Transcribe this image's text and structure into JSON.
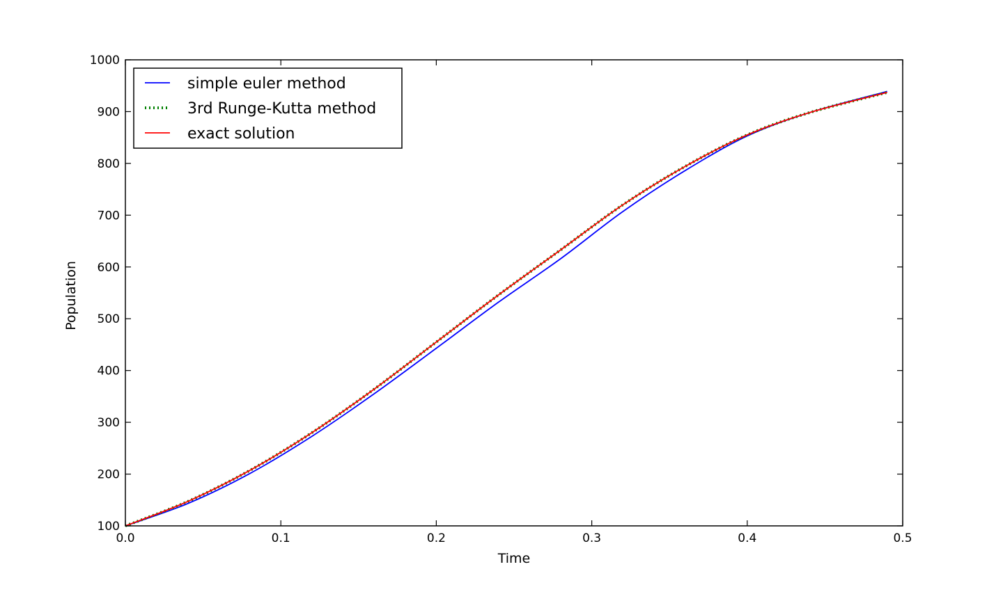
{
  "chart_data": {
    "type": "line",
    "title": "",
    "xlabel": "Time",
    "ylabel": "Population",
    "xlim": [
      0.0,
      0.5
    ],
    "ylim": [
      100,
      1000
    ],
    "x_ticks": [
      "0.0",
      "0.1",
      "0.2",
      "0.3",
      "0.4",
      "0.5"
    ],
    "y_ticks": [
      "100",
      "200",
      "300",
      "400",
      "500",
      "600",
      "700",
      "800",
      "900",
      "1000"
    ],
    "grid": false,
    "legend_position": "top-left",
    "series": [
      {
        "name": "simple euler method",
        "color": "#0000ff",
        "style": "solid",
        "x": [
          0.0,
          0.04,
          0.08,
          0.12,
          0.16,
          0.2,
          0.24,
          0.28,
          0.32,
          0.36,
          0.4,
          0.44,
          0.49
        ],
        "y": [
          100,
          143,
          201,
          273,
          355,
          443,
          532,
          616,
          707,
          786,
          853,
          898,
          939
        ]
      },
      {
        "name": "3rd Runge-Kutta method",
        "color": "#008000",
        "style": "dotted",
        "x": [
          0.0,
          0.04,
          0.08,
          0.12,
          0.16,
          0.2,
          0.24,
          0.28,
          0.32,
          0.36,
          0.4,
          0.44,
          0.49
        ],
        "y": [
          100,
          147,
          207,
          280,
          364,
          455,
          546,
          633,
          720,
          794,
          855,
          898,
          937
        ]
      },
      {
        "name": "exact solution",
        "color": "#ff0000",
        "style": "solid",
        "x": [
          0.0,
          0.04,
          0.08,
          0.12,
          0.16,
          0.2,
          0.24,
          0.28,
          0.32,
          0.36,
          0.4,
          0.44,
          0.49
        ],
        "y": [
          100,
          147,
          207,
          280,
          364,
          455,
          546,
          633,
          720,
          794,
          855,
          898,
          937
        ]
      }
    ]
  }
}
